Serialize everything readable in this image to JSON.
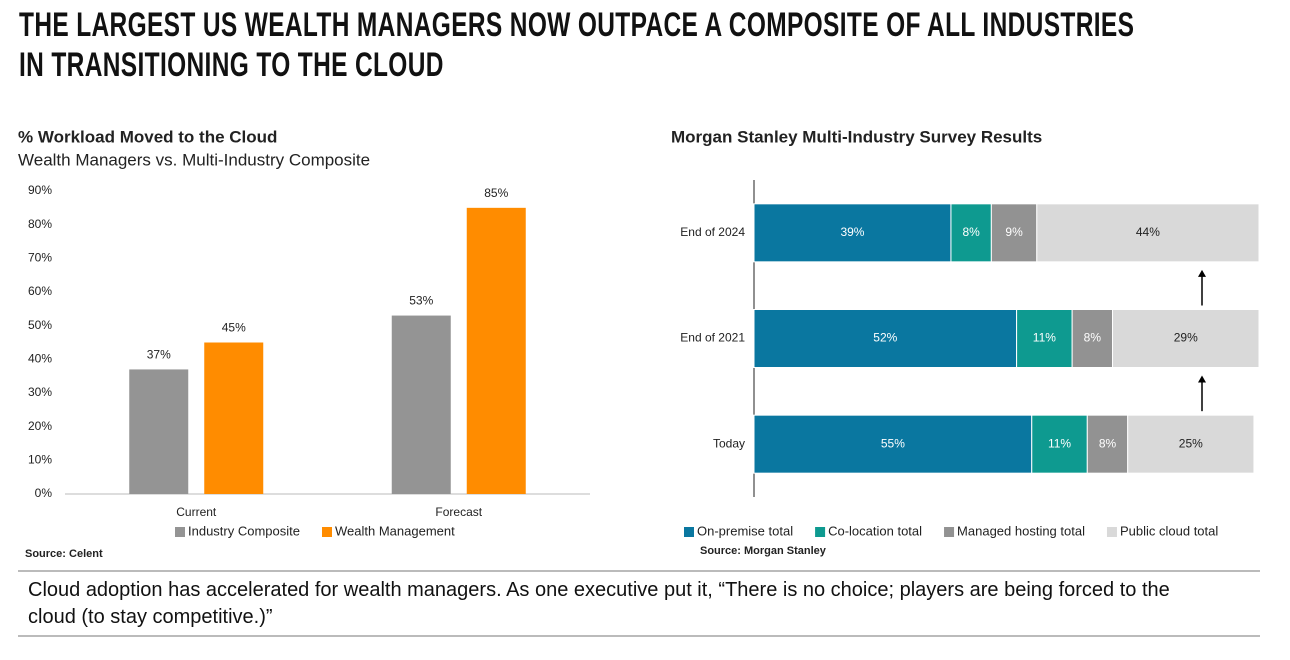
{
  "title": [
    "THE LARGEST US WEALTH MANAGERS NOW OUTPACE A COMPOSITE OF ALL INDUSTRIES",
    "IN TRANSITIONING TO THE CLOUD"
  ],
  "chart_data": [
    {
      "type": "bar",
      "title": "% Workload Moved to the Cloud",
      "subtitle": "Wealth Managers vs. Multi-Industry Composite",
      "categories": [
        "Current",
        "Forecast"
      ],
      "series": [
        {
          "name": "Industry Composite",
          "color": "#949494",
          "values": [
            37,
            53
          ],
          "value_labels": [
            "37%",
            "53%"
          ]
        },
        {
          "name": "Wealth Management",
          "color": "#ff8c00",
          "values": [
            45,
            85
          ],
          "value_labels": [
            "45%",
            "85%"
          ]
        }
      ],
      "ylim": [
        0,
        90
      ],
      "yticks": [
        {
          "value": 0,
          "label": "0%"
        },
        {
          "value": 10,
          "label": "10%"
        },
        {
          "value": 20,
          "label": "20%"
        },
        {
          "value": 30,
          "label": "30%"
        },
        {
          "value": 40,
          "label": "40%"
        },
        {
          "value": 50,
          "label": "50%"
        },
        {
          "value": 60,
          "label": "60%"
        },
        {
          "value": 70,
          "label": "70%"
        },
        {
          "value": 80,
          "label": "80%"
        },
        {
          "value": 90,
          "label": "90%"
        }
      ],
      "grid": false,
      "legend": "bottom",
      "source": "Source: Celent"
    },
    {
      "type": "stacked-hbar",
      "title": "Morgan Stanley Multi-Industry Survey Results",
      "categories": [
        "End of 2024",
        "End of 2021",
        "Today"
      ],
      "series": [
        {
          "name": "On-premise total",
          "color": "#0a77a0",
          "values": [
            39,
            52,
            55
          ],
          "value_labels": [
            "39%",
            "52%",
            "55%"
          ]
        },
        {
          "name": "Co-location total",
          "color": "#0e9a90",
          "values": [
            8,
            11,
            11
          ],
          "value_labels": [
            "8%",
            "11%",
            "11%"
          ]
        },
        {
          "name": "Managed hosting total",
          "color": "#929292",
          "values": [
            9,
            8,
            8
          ],
          "value_labels": [
            "9%",
            "8%",
            "8%"
          ]
        },
        {
          "name": "Public cloud total",
          "color": "#d9d9d9",
          "values": [
            44,
            29,
            25
          ],
          "value_labels": [
            "44%",
            "29%",
            "25%"
          ]
        }
      ],
      "legend": "bottom",
      "source": "Source: Morgan Stanley"
    }
  ],
  "footnote": "Cloud adoption has accelerated for wealth managers. As one executive put it, “There is no choice; players are being forced to the cloud (to stay competitive.)”"
}
